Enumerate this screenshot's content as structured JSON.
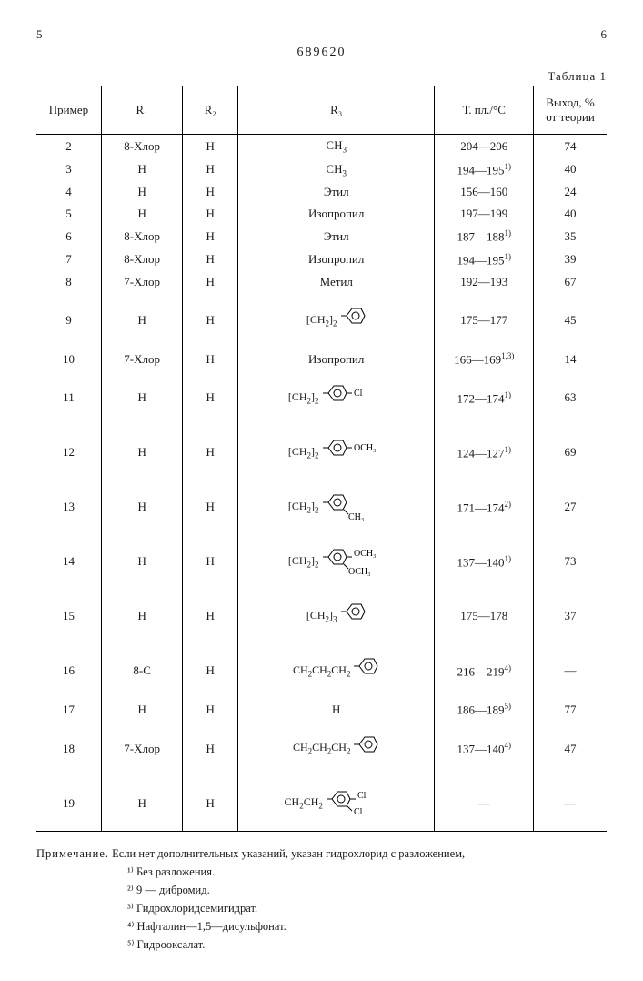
{
  "doc_number": "689620",
  "page_left": "5",
  "page_right": "6",
  "table_label": "Таблица 1",
  "headers": {
    "example": "Пример",
    "r1": "R₁",
    "r2": "R₂",
    "r3": "R₃",
    "mp": "Т. пл./°C",
    "yield": "Выход, % от теории"
  },
  "rows": [
    {
      "ex": "2",
      "r1": "8-Хлор",
      "r2": "H",
      "r3": "CH₃",
      "mp": "204—206",
      "yield": "74",
      "tall": false
    },
    {
      "ex": "3",
      "r1": "H",
      "r2": "H",
      "r3": "CH₃",
      "mp": "194—195",
      "sup": "1)",
      "yield": "40",
      "tall": false
    },
    {
      "ex": "4",
      "r1": "H",
      "r2": "H",
      "r3": "Этил",
      "mp": "156—160",
      "yield": "24",
      "tall": false
    },
    {
      "ex": "5",
      "r1": "H",
      "r2": "H",
      "r3": "Изопропил",
      "mp": "197—199",
      "yield": "40",
      "tall": false
    },
    {
      "ex": "6",
      "r1": "8-Хлор",
      "r2": "H",
      "r3": "Этил",
      "mp": "187—188",
      "sup": "1)",
      "yield": "35",
      "tall": false
    },
    {
      "ex": "7",
      "r1": "8-Хлор",
      "r2": "H",
      "r3": "Изопропил",
      "mp": "194—195",
      "sup": "1)",
      "yield": "39",
      "tall": false
    },
    {
      "ex": "8",
      "r1": "7-Хлор",
      "r2": "H",
      "r3": "Метил",
      "mp": "192—193",
      "yield": "67",
      "tall": false
    },
    {
      "ex": "9",
      "r1": "H",
      "r2": "H",
      "r3_struct": {
        "prefix": "[CH₂]₂",
        "phenyl": true,
        "sub": ""
      },
      "mp": "175—177",
      "yield": "45",
      "tall": true
    },
    {
      "ex": "10",
      "r1": "7-Хлор",
      "r2": "H",
      "r3": "Изопропил",
      "mp": "166—169",
      "sup": "1,3)",
      "yield": "14",
      "tall": false
    },
    {
      "ex": "11",
      "r1": "H",
      "r2": "H",
      "r3_struct": {
        "prefix": "[CH₂]₂",
        "phenyl": true,
        "sub": "Cl",
        "pos": "para"
      },
      "mp": "172—174",
      "sup": "1)",
      "yield": "63",
      "tall": true
    },
    {
      "ex": "12",
      "r1": "H",
      "r2": "H",
      "r3_struct": {
        "prefix": "[CH₂]₂",
        "phenyl": true,
        "sub": "OCH₃",
        "pos": "para"
      },
      "mp": "124—127",
      "sup": "1)",
      "yield": "69",
      "tall": true
    },
    {
      "ex": "13",
      "r1": "H",
      "r2": "H",
      "r3_struct": {
        "prefix": "[CH₂]₂",
        "phenyl": true,
        "sub": "CH₃",
        "pos": "meta"
      },
      "mp": "171—174",
      "sup": "2)",
      "yield": "27",
      "tall": true
    },
    {
      "ex": "14",
      "r1": "H",
      "r2": "H",
      "r3_struct": {
        "prefix": "[CH₂]₂",
        "phenyl": true,
        "sub": "OCH₃",
        "sub2": "OCH₃",
        "pos": "dimeth"
      },
      "mp": "137—140",
      "sup": "1)",
      "yield": "73",
      "tall": true
    },
    {
      "ex": "15",
      "r1": "H",
      "r2": "H",
      "r3_struct": {
        "prefix": "[CH₂]₃",
        "phenyl": true,
        "sub": ""
      },
      "mp": "175—178",
      "yield": "37",
      "tall": true
    },
    {
      "ex": "16",
      "r1": "8-C",
      "r2": "H",
      "r3_struct": {
        "prefix": "CH₂CH₂CH₂",
        "phenyl": true,
        "sub": ""
      },
      "mp": "216—219",
      "sup": "4)",
      "yield": "—",
      "tall": true
    },
    {
      "ex": "17",
      "r1": "H",
      "r2": "H",
      "r3": "H",
      "mp": "186—189",
      "sup": "5)",
      "yield": "77",
      "tall": false
    },
    {
      "ex": "18",
      "r1": "7-Хлор",
      "r2": "H",
      "r3_struct": {
        "prefix": "CH₂CH₂CH₂",
        "phenyl": true,
        "sub": ""
      },
      "mp": "137—140",
      "sup": "4)",
      "yield": "47",
      "tall": true
    },
    {
      "ex": "19",
      "r1": "H",
      "r2": "H",
      "r3_struct": {
        "prefix": "CH₂CH₂",
        "phenyl": true,
        "sub": "Cl",
        "sub2": "Cl",
        "pos": "dichl"
      },
      "mp": "—",
      "yield": "—",
      "tall": true
    }
  ],
  "notes": {
    "heading": "Примечание.",
    "main": "Если нет дополнительных указаний, указан гидрохлорид с разложением,",
    "items": [
      "¹⁾ Без разложения.",
      "²⁾ 9 — дибромид.",
      "³⁾ Гидрохлоридсемигидрат.",
      "⁴⁾ Нафталин—1,5—дисульфонат.",
      "⁵⁾ Гидрооксалат."
    ]
  },
  "style": {
    "font_family": "Times New Roman",
    "font_size_body": 13,
    "font_size_sub": 9,
    "border_color": "#000000",
    "background": "#ffffff",
    "text_color": "#1a1a1a"
  }
}
